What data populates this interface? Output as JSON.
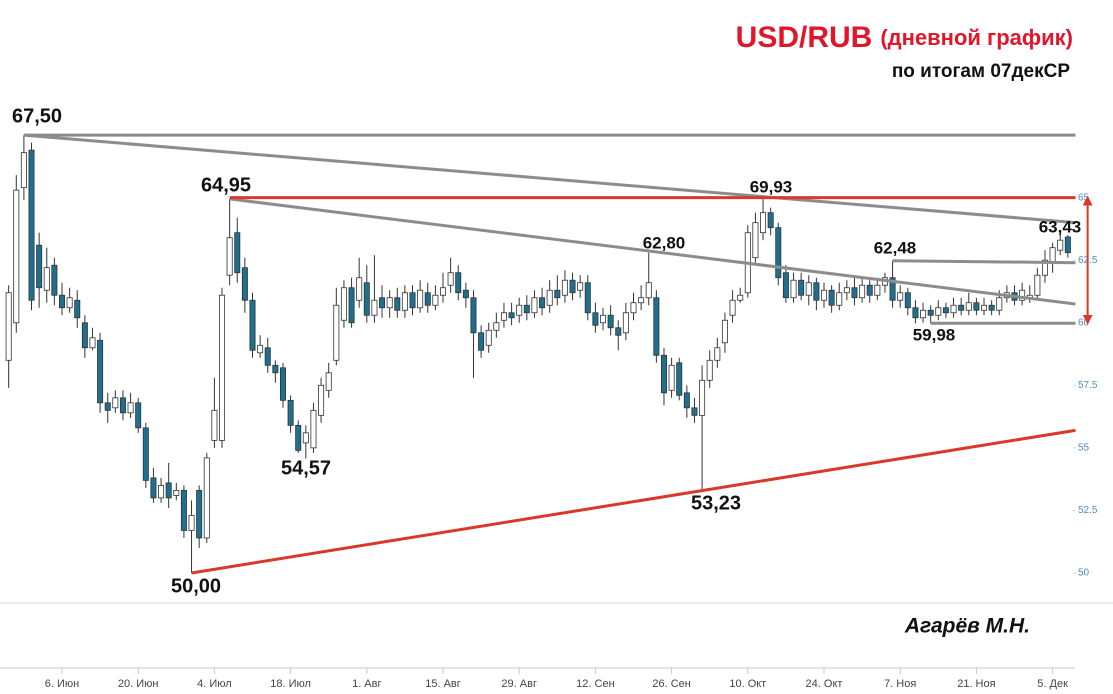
{
  "chart_data": {
    "type": "candlestick",
    "title": "USD/RUB",
    "title_note": "(дневной график)",
    "subtitle": "по итогам 07декСР",
    "author": "Агарёв М.Н.",
    "up_color": "#ffffff",
    "down_color": "#1f6f8f",
    "outline_color": "#333333",
    "ylim": [
      48.8,
      72.5
    ],
    "yticks": [
      50,
      52.5,
      55,
      57.5,
      60,
      62.5,
      65
    ],
    "grid": false,
    "categories": [
      null,
      null,
      null,
      null,
      null,
      null,
      null,
      "6. Июн",
      null,
      null,
      null,
      null,
      null,
      null,
      null,
      null,
      null,
      "20. Июн",
      null,
      null,
      null,
      null,
      null,
      null,
      null,
      null,
      null,
      "4. Июл",
      null,
      null,
      null,
      null,
      null,
      null,
      null,
      null,
      null,
      "18. Июл",
      null,
      null,
      null,
      null,
      null,
      null,
      null,
      null,
      null,
      "1. Авг",
      null,
      null,
      null,
      null,
      null,
      null,
      null,
      null,
      null,
      "15. Авг",
      null,
      null,
      null,
      null,
      null,
      null,
      null,
      null,
      null,
      "29. Авг",
      null,
      null,
      null,
      null,
      null,
      null,
      null,
      null,
      null,
      "12. Сен",
      null,
      null,
      null,
      null,
      null,
      null,
      null,
      null,
      null,
      "26. Сен",
      null,
      null,
      null,
      null,
      null,
      null,
      null,
      null,
      null,
      "10. Окт",
      null,
      null,
      null,
      null,
      null,
      null,
      null,
      null,
      null,
      "24. Окт",
      null,
      null,
      null,
      null,
      null,
      null,
      null,
      null,
      null,
      "7. Ноя",
      null,
      null,
      null,
      null,
      null,
      null,
      null,
      null,
      null,
      "21. Ноя",
      null,
      null,
      null,
      null,
      null,
      null,
      null,
      null,
      null,
      "5. Дек",
      null,
      null
    ],
    "ohlc": [
      [
        58.5,
        61.5,
        57.4,
        61.2
      ],
      [
        60.0,
        65.9,
        59.6,
        65.3
      ],
      [
        65.4,
        67.5,
        64.9,
        66.8
      ],
      [
        66.9,
        67.2,
        60.5,
        60.9
      ],
      [
        63.1,
        63.6,
        60.6,
        61.4
      ],
      [
        61.3,
        63.0,
        60.8,
        62.2
      ],
      [
        62.3,
        62.6,
        60.7,
        61.1
      ],
      [
        61.1,
        61.6,
        60.3,
        60.6
      ],
      [
        60.6,
        61.4,
        60.4,
        61.0
      ],
      [
        60.9,
        61.3,
        59.8,
        60.2
      ],
      [
        60.0,
        60.3,
        58.6,
        59.0
      ],
      [
        59.0,
        59.8,
        58.9,
        59.4
      ],
      [
        59.3,
        59.6,
        56.4,
        56.8
      ],
      [
        56.8,
        57.2,
        56.0,
        56.5
      ],
      [
        56.6,
        57.3,
        56.4,
        57.0
      ],
      [
        57.0,
        57.3,
        56.1,
        56.4
      ],
      [
        56.4,
        57.2,
        56.2,
        56.8
      ],
      [
        56.8,
        57.0,
        55.6,
        55.8
      ],
      [
        55.8,
        56.0,
        53.4,
        53.7
      ],
      [
        53.8,
        54.2,
        52.8,
        53.0
      ],
      [
        53.0,
        53.8,
        52.8,
        53.5
      ],
      [
        53.6,
        54.4,
        52.6,
        53.0
      ],
      [
        53.1,
        53.6,
        52.9,
        53.3
      ],
      [
        53.3,
        53.5,
        51.4,
        51.7
      ],
      [
        51.7,
        52.9,
        50.0,
        52.3
      ],
      [
        53.3,
        53.5,
        51.0,
        51.4
      ],
      [
        51.4,
        54.8,
        51.2,
        54.6
      ],
      [
        55.3,
        57.8,
        55.0,
        56.5
      ],
      [
        55.3,
        61.4,
        55.0,
        61.1
      ],
      [
        61.9,
        64.95,
        61.5,
        63.4
      ],
      [
        63.6,
        64.2,
        61.6,
        62.0
      ],
      [
        62.2,
        62.6,
        60.4,
        60.9
      ],
      [
        60.9,
        61.2,
        58.6,
        58.9
      ],
      [
        58.8,
        59.5,
        58.6,
        59.1
      ],
      [
        59.0,
        59.4,
        58.0,
        58.3
      ],
      [
        58.3,
        58.5,
        57.6,
        58.0
      ],
      [
        58.2,
        58.4,
        56.6,
        56.9
      ],
      [
        56.9,
        57.1,
        55.6,
        55.9
      ],
      [
        55.9,
        56.1,
        54.8,
        54.9
      ],
      [
        55.2,
        55.9,
        54.57,
        55.6
      ],
      [
        55.0,
        56.8,
        54.8,
        56.5
      ],
      [
        56.3,
        57.8,
        56.0,
        57.5
      ],
      [
        57.3,
        58.4,
        57.0,
        58.0
      ],
      [
        58.5,
        61.4,
        58.3,
        60.7
      ],
      [
        60.1,
        61.7,
        59.8,
        61.4
      ],
      [
        61.4,
        61.8,
        59.8,
        60.0
      ],
      [
        60.9,
        62.6,
        60.6,
        61.8
      ],
      [
        61.6,
        62.3,
        60.0,
        60.3
      ],
      [
        60.3,
        62.7,
        60.0,
        60.9
      ],
      [
        61.0,
        61.5,
        60.2,
        60.6
      ],
      [
        60.6,
        61.3,
        60.2,
        61.0
      ],
      [
        61.0,
        61.4,
        60.2,
        60.5
      ],
      [
        60.5,
        61.5,
        60.2,
        61.2
      ],
      [
        61.2,
        61.5,
        60.3,
        60.6
      ],
      [
        60.6,
        61.7,
        60.4,
        61.3
      ],
      [
        61.2,
        61.6,
        60.4,
        60.7
      ],
      [
        60.7,
        61.5,
        60.5,
        61.1
      ],
      [
        61.1,
        62.0,
        60.8,
        61.4
      ],
      [
        61.5,
        62.6,
        61.2,
        62.0
      ],
      [
        62.0,
        62.3,
        60.9,
        61.2
      ],
      [
        61.3,
        61.6,
        60.6,
        61.0
      ],
      [
        61.0,
        61.3,
        57.8,
        59.6
      ],
      [
        59.6,
        59.9,
        58.6,
        58.9
      ],
      [
        59.1,
        60.0,
        58.8,
        59.7
      ],
      [
        59.7,
        60.4,
        59.4,
        60.0
      ],
      [
        60.1,
        60.8,
        59.8,
        60.4
      ],
      [
        60.4,
        60.8,
        59.9,
        60.2
      ],
      [
        60.3,
        61.0,
        60.0,
        60.7
      ],
      [
        60.7,
        61.1,
        60.1,
        60.4
      ],
      [
        60.4,
        61.3,
        60.2,
        61.0
      ],
      [
        61.0,
        61.4,
        60.3,
        60.6
      ],
      [
        60.7,
        61.7,
        60.4,
        61.3
      ],
      [
        61.3,
        61.9,
        60.7,
        61.0
      ],
      [
        61.1,
        62.1,
        60.8,
        61.7
      ],
      [
        61.7,
        62.0,
        60.9,
        61.2
      ],
      [
        61.3,
        61.9,
        61.0,
        61.6
      ],
      [
        61.6,
        61.9,
        60.1,
        60.4
      ],
      [
        60.4,
        60.8,
        59.6,
        59.9
      ],
      [
        60.0,
        60.6,
        59.7,
        60.3
      ],
      [
        60.3,
        60.7,
        59.5,
        59.8
      ],
      [
        59.8,
        60.1,
        58.9,
        59.5
      ],
      [
        59.6,
        60.8,
        59.3,
        60.4
      ],
      [
        60.4,
        61.2,
        60.1,
        60.8
      ],
      [
        60.8,
        61.5,
        60.5,
        61.0
      ],
      [
        61.0,
        62.8,
        60.7,
        61.6
      ],
      [
        61.0,
        61.3,
        58.4,
        58.7
      ],
      [
        58.7,
        59.0,
        56.7,
        57.2
      ],
      [
        57.3,
        58.6,
        57.0,
        58.3
      ],
      [
        58.4,
        58.6,
        56.9,
        57.1
      ],
      [
        57.2,
        57.5,
        56.2,
        56.6
      ],
      [
        56.6,
        57.0,
        56.0,
        56.3
      ],
      [
        56.3,
        58.3,
        53.23,
        57.7
      ],
      [
        57.7,
        58.9,
        57.4,
        58.5
      ],
      [
        58.5,
        59.4,
        58.2,
        59.0
      ],
      [
        59.2,
        60.4,
        58.8,
        60.1
      ],
      [
        60.3,
        61.3,
        60.0,
        60.9
      ],
      [
        60.9,
        61.4,
        60.8,
        61.1
      ],
      [
        61.2,
        63.9,
        61.0,
        63.6
      ],
      [
        62.6,
        64.4,
        62.3,
        64.0
      ],
      [
        63.6,
        64.95,
        63.3,
        64.4
      ],
      [
        64.4,
        64.6,
        63.5,
        63.8
      ],
      [
        63.8,
        64.0,
        61.5,
        61.8
      ],
      [
        62.0,
        62.3,
        60.8,
        61.0
      ],
      [
        61.0,
        62.0,
        60.8,
        61.7
      ],
      [
        61.7,
        62.0,
        60.9,
        61.1
      ],
      [
        61.1,
        61.9,
        60.7,
        61.6
      ],
      [
        61.6,
        61.8,
        60.5,
        60.9
      ],
      [
        60.9,
        61.6,
        60.6,
        61.3
      ],
      [
        61.3,
        61.5,
        60.4,
        60.7
      ],
      [
        60.7,
        61.6,
        60.5,
        61.2
      ],
      [
        61.2,
        61.7,
        60.9,
        61.4
      ],
      [
        61.4,
        61.8,
        60.7,
        61.0
      ],
      [
        61.0,
        61.8,
        60.8,
        61.5
      ],
      [
        61.5,
        61.7,
        60.8,
        61.1
      ],
      [
        61.1,
        61.8,
        60.9,
        61.5
      ],
      [
        61.5,
        62.0,
        61.2,
        61.8
      ],
      [
        61.8,
        62.48,
        60.6,
        60.9
      ],
      [
        60.9,
        61.5,
        60.6,
        61.2
      ],
      [
        61.2,
        61.4,
        60.3,
        60.6
      ],
      [
        60.6,
        60.9,
        59.98,
        60.2
      ],
      [
        60.2,
        60.8,
        60.0,
        60.5
      ],
      [
        60.5,
        60.7,
        59.98,
        60.3
      ],
      [
        60.3,
        60.9,
        60.1,
        60.6
      ],
      [
        60.6,
        60.8,
        60.2,
        60.4
      ],
      [
        60.4,
        61.0,
        60.2,
        60.7
      ],
      [
        60.7,
        61.0,
        60.3,
        60.5
      ],
      [
        60.5,
        61.2,
        60.3,
        60.8
      ],
      [
        60.8,
        61.0,
        60.3,
        60.5
      ],
      [
        60.5,
        61.0,
        60.3,
        60.7
      ],
      [
        60.7,
        60.9,
        60.3,
        60.5
      ],
      [
        60.5,
        61.3,
        60.3,
        61.0
      ],
      [
        61.0,
        61.5,
        60.8,
        61.2
      ],
      [
        61.2,
        61.5,
        60.7,
        60.9
      ],
      [
        60.9,
        61.6,
        60.7,
        61.3
      ],
      [
        61.0,
        61.5,
        60.8,
        61.1
      ],
      [
        61.1,
        62.2,
        60.9,
        61.9
      ],
      [
        61.9,
        62.9,
        61.6,
        62.5
      ],
      [
        62.4,
        63.2,
        62.0,
        63.0
      ],
      [
        62.9,
        63.6,
        62.7,
        63.3
      ],
      [
        63.43,
        63.5,
        62.6,
        62.8
      ]
    ],
    "lines": [
      {
        "x": [
          2,
          140
        ],
        "y": [
          67.5,
          67.5
        ],
        "color": "#8c8c8c"
      },
      {
        "x": [
          2,
          140
        ],
        "y": [
          67.5,
          64.0
        ],
        "color": "#8c8c8c"
      },
      {
        "x": [
          29,
          140
        ],
        "y": [
          64.95,
          60.75
        ],
        "color": "#8c8c8c"
      },
      {
        "x": [
          116,
          140
        ],
        "y": [
          62.48,
          62.4
        ],
        "color": "#8c8c8c"
      },
      {
        "x": [
          121,
          140
        ],
        "y": [
          59.98,
          59.98
        ],
        "color": "#8c8c8c"
      },
      {
        "x": [
          29,
          140
        ],
        "y": [
          65,
          65
        ],
        "color": "#d9392b"
      },
      {
        "x": [
          24,
          140
        ],
        "y": [
          50,
          55.7
        ],
        "color": "#d9392b"
      },
      {
        "x": [
          141.6,
          141.6
        ],
        "y": [
          65,
          60
        ],
        "color": "#d9392b",
        "arrow": true
      }
    ],
    "annotations": [
      "67,50",
      "64,95",
      "54,57",
      "50,00",
      "62,80",
      "69,93",
      "53,23",
      "62,48",
      "59,98",
      "63,43"
    ]
  }
}
